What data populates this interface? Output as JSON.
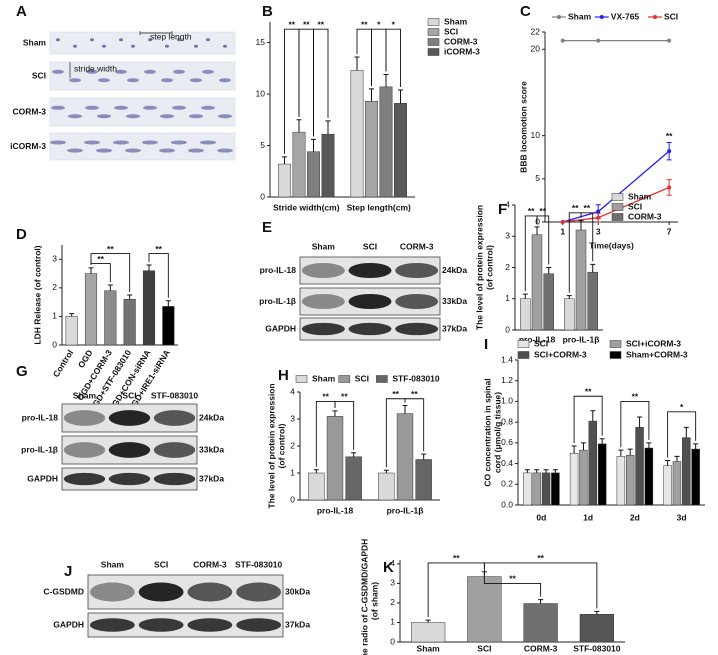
{
  "chart_data": [
    {
      "panel": "B",
      "type": "bar",
      "categories": [
        "Stride width(cm)",
        "Step length(cm)"
      ],
      "series": [
        {
          "name": "Sham",
          "color": "#d9d9d9",
          "values": [
            3.2,
            12.3
          ],
          "errors": [
            0.7,
            1.3
          ]
        },
        {
          "name": "SCI",
          "color": "#a6a6a6",
          "values": [
            6.3,
            9.3
          ],
          "errors": [
            1.2,
            1.2
          ]
        },
        {
          "name": "CORM-3",
          "color": "#7f7f7f",
          "values": [
            4.4,
            10.7
          ],
          "errors": [
            1.2,
            1.2
          ]
        },
        {
          "name": "iCORM-3",
          "color": "#595959",
          "values": [
            6.1,
            9.1
          ],
          "errors": [
            1.3,
            1.3
          ]
        }
      ],
      "ylim": [
        0,
        17
      ],
      "yticks": [
        0,
        5,
        10,
        15
      ],
      "annotations": [
        "**",
        "**",
        "**",
        "**",
        "*",
        "*"
      ]
    },
    {
      "panel": "C",
      "type": "line",
      "x": [
        1,
        3,
        7
      ],
      "xlabel": "Time(days)",
      "ylabel": "BBB locomotion score",
      "series": [
        {
          "name": "Sham",
          "color": "#808080",
          "values": [
            21,
            21,
            21
          ]
        },
        {
          "name": "VX-765",
          "color": "#1f1fff",
          "values": [
            0,
            1.2,
            8.2
          ],
          "errors": [
            0,
            0.8,
            1.0
          ]
        },
        {
          "name": "SCI",
          "color": "#e03030",
          "values": [
            0,
            0.5,
            4.0
          ],
          "errors": [
            0,
            0.5,
            0.9
          ]
        }
      ],
      "xlim": [
        0,
        7.5
      ],
      "xticks": [
        1,
        3,
        7
      ],
      "ylim": [
        0,
        22
      ],
      "yticks": [
        0,
        5,
        10,
        20,
        22
      ],
      "annotations": [
        "**"
      ]
    },
    {
      "panel": "D",
      "type": "bar",
      "ylabel": "LDH Release (of control)",
      "categories": [
        "Control",
        "OGD",
        "OGD+CORM-3",
        "OGD+STF-083010",
        "OGD+CON-siRNA",
        "OGD+IRE1-siRNA"
      ],
      "values": [
        1.0,
        2.5,
        1.9,
        1.6,
        2.6,
        1.35
      ],
      "errors": [
        0.1,
        0.2,
        0.2,
        0.15,
        0.2,
        0.2
      ],
      "colors": [
        "#d9d9d9",
        "#a6a6a6",
        "#8c8c8c",
        "#737373",
        "#404040",
        "#000000"
      ],
      "ylim": [
        0,
        3.5
      ],
      "yticks": [
        0,
        1,
        2,
        3
      ],
      "annotations": [
        "**",
        "**",
        "**"
      ]
    },
    {
      "panel": "F",
      "type": "bar",
      "ylabel": [
        "The level of protein expression",
        "(of control)"
      ],
      "categories": [
        "pro-IL-18",
        "pro-IL-1β"
      ],
      "series": [
        {
          "name": "Sham",
          "color": "#d9d9d9",
          "values": [
            1.0,
            1.0
          ],
          "errors": [
            0.15,
            0.1
          ]
        },
        {
          "name": "SCI",
          "color": "#a0a0a0",
          "values": [
            3.05,
            3.2
          ],
          "errors": [
            0.25,
            0.3
          ]
        },
        {
          "name": "CORM-3",
          "color": "#707070",
          "values": [
            1.8,
            1.85
          ],
          "errors": [
            0.2,
            0.25
          ]
        }
      ],
      "ylim": [
        0,
        4
      ],
      "yticks": [
        0,
        1,
        2,
        3,
        4
      ],
      "annotations": [
        "**",
        "**",
        "**",
        "**"
      ]
    },
    {
      "panel": "H",
      "type": "bar",
      "ylabel": [
        "The level of protein expression",
        "(of control)"
      ],
      "categories": [
        "pro-IL-18",
        "pro-IL-1β"
      ],
      "series": [
        {
          "name": "Sham",
          "color": "#d9d9d9",
          "values": [
            1.0,
            1.0
          ],
          "errors": [
            0.12,
            0.1
          ]
        },
        {
          "name": "SCI",
          "color": "#999999",
          "values": [
            3.1,
            3.2
          ],
          "errors": [
            0.2,
            0.3
          ]
        },
        {
          "name": "STF-083010",
          "color": "#666666",
          "values": [
            1.6,
            1.5
          ],
          "errors": [
            0.15,
            0.2
          ]
        }
      ],
      "ylim": [
        0,
        4
      ],
      "yticks": [
        0,
        1,
        2,
        3,
        4
      ],
      "annotations": [
        "**",
        "**",
        "**",
        "**"
      ]
    },
    {
      "panel": "I",
      "type": "bar",
      "ylabel": [
        "CO concentration in spinal",
        "cord (μmol/g tissue)"
      ],
      "categories": [
        "0d",
        "1d",
        "2d",
        "3d"
      ],
      "series": [
        {
          "name": "SCI",
          "color": "#e6e6e6",
          "values": [
            0.31,
            0.5,
            0.47,
            0.38
          ],
          "errors": [
            0.03,
            0.07,
            0.06,
            0.05
          ]
        },
        {
          "name": "SCI+iCORM-3",
          "color": "#a0a0a0",
          "values": [
            0.31,
            0.53,
            0.48,
            0.42
          ],
          "errors": [
            0.03,
            0.07,
            0.06,
            0.05
          ]
        },
        {
          "name": "SCI+CORM-3",
          "color": "#505050",
          "values": [
            0.31,
            0.81,
            0.75,
            0.65
          ],
          "errors": [
            0.03,
            0.1,
            0.1,
            0.1
          ]
        },
        {
          "name": "Sham+CORM-3",
          "color": "#000000",
          "values": [
            0.31,
            0.59,
            0.55,
            0.54
          ],
          "errors": [
            0.03,
            0.05,
            0.05,
            0.05
          ]
        }
      ],
      "ylim": [
        0,
        1.4
      ],
      "yticks": [
        {
          "value": 0,
          "label": "0.0"
        },
        0.2,
        0.4,
        0.6,
        0.8,
        {
          "value": 1,
          "label": "1.0"
        },
        1.2,
        1.4
      ],
      "annotations": [
        "**",
        "**",
        "*"
      ]
    },
    {
      "panel": "K",
      "type": "bar",
      "ylabel": [
        "The radio of C-GSDMD/GAPDH",
        "(of sham)"
      ],
      "categories": [
        "Sham",
        "SCI",
        "CORM-3",
        "STF-083010"
      ],
      "values": [
        1.0,
        3.35,
        1.97,
        1.42
      ],
      "errors": [
        0.12,
        0.25,
        0.2,
        0.15
      ],
      "colors": [
        "#d9d9d9",
        "#a0a0a0",
        "#707070",
        "#555555"
      ],
      "ylim": [
        0,
        4.2
      ],
      "yticks": [
        0,
        1,
        2,
        3,
        4
      ],
      "annotations": [
        "**",
        "**",
        "**"
      ]
    }
  ],
  "blots": [
    {
      "panel": "A",
      "rows": [
        "Sham",
        "SCI",
        "CORM-3",
        "iCORM-3"
      ],
      "labels": [
        "step length",
        "stride width"
      ]
    },
    {
      "panel": "E",
      "lanes": [
        "Sham",
        "SCI",
        "CORM-3"
      ],
      "rows": [
        {
          "name": "pro-IL-18",
          "size": "24kDa"
        },
        {
          "name": "pro-IL-1β",
          "size": "33kDa"
        },
        {
          "name": "GAPDH",
          "size": "37kDa"
        }
      ]
    },
    {
      "panel": "G",
      "lanes": [
        "Sham",
        "SCI",
        "STF-083010"
      ],
      "rows": [
        {
          "name": "pro-IL-18",
          "size": "24kDa"
        },
        {
          "name": "pro-IL-1β",
          "size": "33kDa"
        },
        {
          "name": "GAPDH",
          "size": "37kDa"
        }
      ]
    },
    {
      "panel": "J",
      "lanes": [
        "Sham",
        "SCI",
        "CORM-3",
        "STF-083010"
      ],
      "rows": [
        {
          "name": "C-GSDMD",
          "size": "30kDa"
        },
        {
          "name": "GAPDH",
          "size": "37kDa"
        }
      ]
    }
  ]
}
